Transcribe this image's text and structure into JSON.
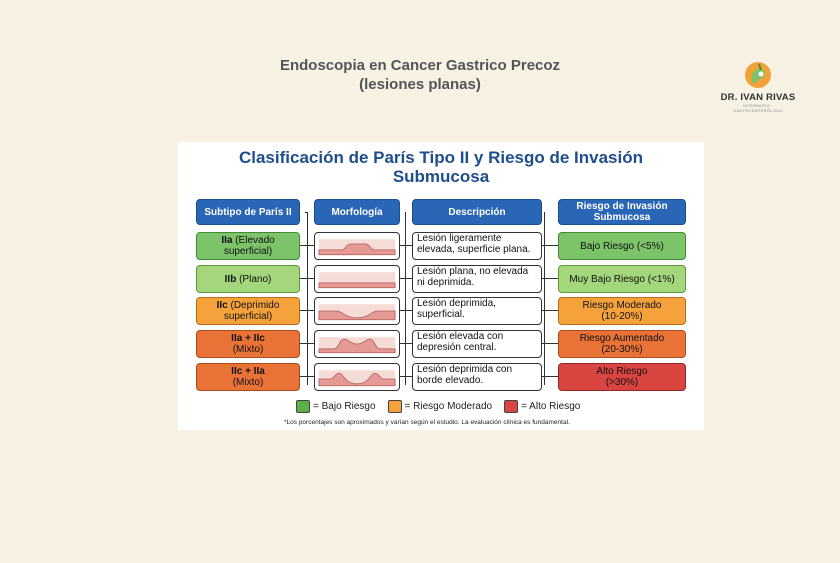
{
  "page": {
    "title_line1": "Endoscopia en Cancer Gastrico Precoz",
    "title_line2": "(lesiones planas)"
  },
  "logo": {
    "name": "DR. IVAN RIVAS",
    "subtitle": "INTERNISTA · GASTROENTERÓLOGO"
  },
  "diagram": {
    "title_line1": "Clasificación de París Tipo II y Riesgo de Invasión",
    "title_line2": "Submucosa",
    "headers": {
      "subtype": "Subtipo de París II",
      "morphology": "Morfología",
      "description": "Descripción",
      "risk_line1": "Riesgo de Invasión",
      "risk_line2": "Submucosa"
    },
    "rows": [
      {
        "code": "IIa",
        "name_line1": "(Elevado",
        "name_line2": "superficial)",
        "desc_line1": "Lesión ligeramente",
        "desc_line2": "elevada, superficie plana.",
        "risk_line1": "Bajo Riesgo (<5%)",
        "risk_line2": "",
        "shape": "elevated",
        "color": "#7cc36a"
      },
      {
        "code": "IIb",
        "name_line1": "(Plano)",
        "name_line2": "",
        "desc_line1": "Lesión plana, no elevada",
        "desc_line2": "ni deprimida.",
        "risk_line1": "Muy Bajo Riesgo (<1%)",
        "risk_line2": "",
        "shape": "flat",
        "color": "#a4d67c"
      },
      {
        "code": "IIc",
        "name_line1": "(Deprimido",
        "name_line2": "superficial)",
        "desc_line1": "Lesión deprimida,",
        "desc_line2": "superficial.",
        "risk_line1": "Riesgo Moderado",
        "risk_line2": "(10-20%)",
        "shape": "depressed",
        "color": "#f5a23c"
      },
      {
        "code": "IIa + IIc",
        "name_line1": "",
        "name_line2": "(Mixto)",
        "desc_line1": "Lesión elevada con",
        "desc_line2": "depresión central.",
        "risk_line1": "Riesgo Aumentado",
        "risk_line2": "(20-30%)",
        "shape": "elevated-depressed",
        "color": "#e97236"
      },
      {
        "code": "IIc + IIa",
        "name_line1": "",
        "name_line2": "(Mixto)",
        "desc_line1": "Lesión deprimida con",
        "desc_line2": "borde elevado.",
        "risk_line1": "Alto Riesgo",
        "risk_line2": "(>30%)",
        "shape": "depressed-rim",
        "color": "#d94642"
      }
    ],
    "legend": [
      {
        "label": "= Bajo Riesgo",
        "color": "#5cb04a"
      },
      {
        "label": "= Riesgo Moderado",
        "color": "#f5a23c"
      },
      {
        "label": "= Alto Riesgo",
        "color": "#d94642"
      }
    ],
    "footnote": "*Los porcentajes son aproximados y varían según el estudio. La evaluación clínica es fundamental."
  }
}
